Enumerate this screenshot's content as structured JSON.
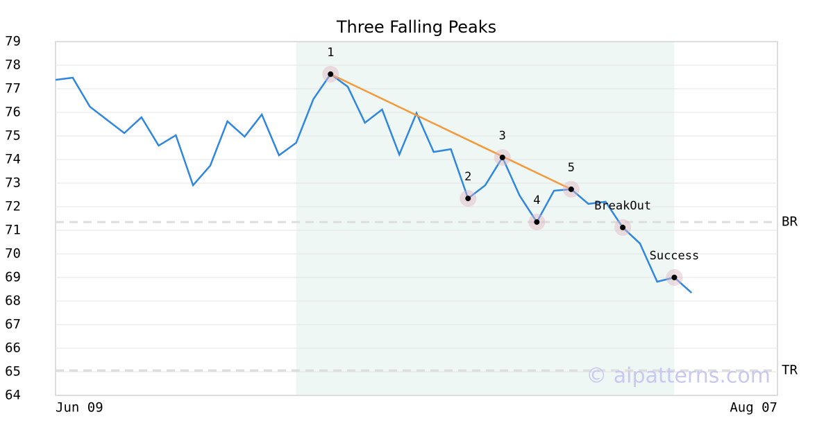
{
  "chart_data": {
    "type": "line",
    "title": "Three Falling Peaks",
    "categories": [
      "Jun 09",
      null,
      null,
      null,
      null,
      null,
      null,
      null,
      null,
      null,
      null,
      null,
      null,
      null,
      null,
      null,
      null,
      null,
      null,
      null,
      null,
      null,
      null,
      null,
      null,
      null,
      null,
      null,
      null,
      null,
      null,
      null,
      null,
      null,
      null,
      null,
      null,
      null,
      null,
      null,
      null,
      null,
      "Aug 07"
    ],
    "values": [
      77.38,
      77.47,
      76.24,
      75.68,
      75.12,
      75.79,
      74.59,
      75.03,
      72.91,
      73.74,
      75.62,
      74.97,
      75.91,
      74.18,
      74.71,
      76.56,
      77.62,
      77.09,
      75.56,
      76.12,
      74.21,
      75.97,
      74.32,
      74.44,
      72.35,
      72.91,
      74.09,
      72.47,
      71.35,
      72.68,
      72.74,
      72.12,
      72.21,
      71.12,
      70.44,
      68.82,
      69.0,
      68.35,
      null,
      null,
      null,
      null,
      null
    ],
    "color": "#2f86e0",
    "ylim": [
      64,
      79
    ],
    "yticks": [
      64,
      65,
      66,
      67,
      68,
      69,
      70,
      71,
      72,
      73,
      74,
      75,
      76,
      77,
      78,
      79
    ],
    "grid": true,
    "highlight": {
      "from": 14,
      "to": 36,
      "color": "#eef7f3"
    },
    "trendline": {
      "from": 16,
      "to": 30,
      "color": "#f59a3c"
    },
    "points": [
      {
        "label": "1",
        "x": 16
      },
      {
        "label": "2",
        "x": 24
      },
      {
        "label": "3",
        "x": 26
      },
      {
        "label": "4",
        "x": 28
      },
      {
        "label": "5",
        "x": 30
      },
      {
        "label": "BreakOut",
        "x": 33
      },
      {
        "label": "Success",
        "x": 36
      }
    ],
    "levels": [
      {
        "label": "BR",
        "value": 71.35
      },
      {
        "label": "TR",
        "value": 65.06
      }
    ],
    "watermark": "© aipatterns.com"
  }
}
